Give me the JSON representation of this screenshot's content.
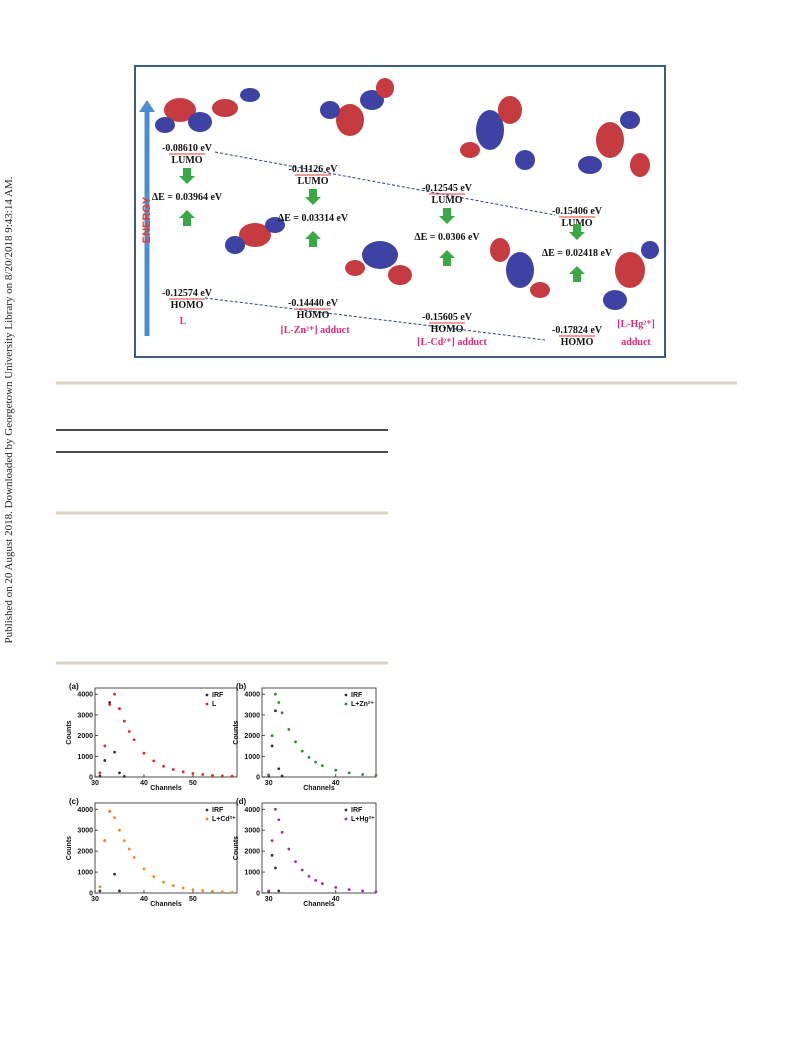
{
  "side_note": "Published on 20 August 2018. Downloaded by Georgetown University Library on 8/20/2018 9:43:14 AM.",
  "figure": {
    "axis_label": "ENERGY",
    "species": [
      {
        "lumo": "-0.08610 eV",
        "lumo_label": "LUMO",
        "gap": "ΔE = 0.03964 eV",
        "homo": "-0.12574 eV",
        "homo_label": "HOMO",
        "name": [
          "L"
        ]
      },
      {
        "lumo": "-0.11126 eV",
        "lumo_label": "LUMO",
        "gap": "ΔE = 0.03314 eV",
        "homo": "-0.14440 eV",
        "homo_label": "HOMO",
        "name": [
          "[L-Zn²⁺] adduct"
        ]
      },
      {
        "lumo": "-0.12545 eV",
        "lumo_label": "LUMO",
        "gap": "ΔE = 0.0306 eV",
        "homo": "-0.15605 eV",
        "homo_label": "HOMO",
        "name": [
          "[L-Cd²⁺] adduct"
        ]
      },
      {
        "lumo": "-0.15406 eV",
        "lumo_label": "LUMO",
        "gap": "ΔE = 0.02418 eV",
        "homo": "-0.17824 eV",
        "homo_label": "HOMO",
        "name": [
          "[L-Hg²⁺]",
          "adduct"
        ]
      }
    ]
  },
  "chart_data": [
    {
      "type": "scatter",
      "panel": "(a)",
      "xlabel": "Channels",
      "ylabel": "Counts",
      "xlim": [
        30,
        59
      ],
      "ylim": [
        0,
        4300
      ],
      "xticks": [
        30,
        40,
        50
      ],
      "yticks": [
        0,
        1000,
        2000,
        3000,
        4000
      ],
      "series": [
        {
          "name": "IRF",
          "color": "#333333",
          "x": [
            31,
            32,
            33,
            34,
            35,
            36
          ],
          "values": [
            50,
            800,
            3600,
            1200,
            200,
            30
          ]
        },
        {
          "name": "L",
          "color": "#d42a2a",
          "x": [
            31,
            32,
            33,
            34,
            35,
            36,
            37,
            38,
            40,
            42,
            44,
            46,
            48,
            50,
            52,
            54,
            56,
            58
          ],
          "values": [
            200,
            1500,
            3500,
            4000,
            3300,
            2700,
            2200,
            1800,
            1150,
            780,
            520,
            360,
            250,
            170,
            120,
            80,
            55,
            40
          ]
        }
      ]
    },
    {
      "type": "scatter",
      "panel": "(b)",
      "xlabel": "Channels",
      "ylabel": "Counts",
      "xlim": [
        29,
        46
      ],
      "ylim": [
        0,
        4300
      ],
      "xticks": [
        30,
        40
      ],
      "yticks": [
        0,
        1000,
        2000,
        3000,
        4000
      ],
      "series": [
        {
          "name": "IRF",
          "color": "#333333",
          "x": [
            30,
            30.5,
            31,
            31.5,
            32
          ],
          "values": [
            30,
            1500,
            3200,
            400,
            50
          ]
        },
        {
          "name": "L+Zn²⁺",
          "color": "#2f8a2f",
          "x": [
            30,
            30.5,
            31,
            31.5,
            32,
            33,
            34,
            35,
            36,
            37,
            38,
            40,
            42,
            44,
            46
          ],
          "values": [
            100,
            2000,
            4000,
            3600,
            3100,
            2300,
            1700,
            1250,
            950,
            720,
            550,
            330,
            200,
            120,
            80
          ]
        }
      ]
    },
    {
      "type": "scatter",
      "panel": "(c)",
      "xlabel": "Channels",
      "ylabel": "Counts",
      "xlim": [
        30,
        59
      ],
      "ylim": [
        0,
        4300
      ],
      "xticks": [
        30,
        40,
        50
      ],
      "yticks": [
        0,
        1000,
        2000,
        3000,
        4000
      ],
      "series": [
        {
          "name": "IRF",
          "color": "#333333",
          "x": [
            31,
            32,
            33,
            34,
            35
          ],
          "values": [
            100,
            2500,
            3900,
            900,
            100
          ]
        },
        {
          "name": "L+Cd²⁺",
          "color": "#ee8a1e",
          "x": [
            31,
            32,
            33,
            34,
            35,
            36,
            37,
            38,
            40,
            42,
            44,
            46,
            48,
            50,
            52,
            54,
            56,
            58
          ],
          "values": [
            300,
            2500,
            3900,
            3600,
            3000,
            2500,
            2100,
            1700,
            1150,
            780,
            520,
            350,
            240,
            160,
            110,
            75,
            50,
            35
          ]
        }
      ]
    },
    {
      "type": "scatter",
      "panel": "(d)",
      "xlabel": "Channels",
      "ylabel": "Counts",
      "xlim": [
        29,
        46
      ],
      "ylim": [
        0,
        4300
      ],
      "xticks": [
        30,
        40
      ],
      "yticks": [
        0,
        1000,
        2000,
        3000,
        4000
      ],
      "series": [
        {
          "name": "IRF",
          "color": "#333333",
          "x": [
            30,
            30.5,
            31,
            31.5
          ],
          "values": [
            50,
            1800,
            1200,
            100
          ]
        },
        {
          "name": "L+Hg²⁺",
          "color": "#9b2fa0",
          "x": [
            30,
            30.5,
            31,
            31.5,
            32,
            33,
            34,
            35,
            36,
            37,
            38,
            40,
            42,
            44,
            46
          ],
          "values": [
            100,
            2500,
            4000,
            3500,
            2900,
            2100,
            1500,
            1100,
            800,
            600,
            450,
            270,
            160,
            100,
            65
          ]
        }
      ]
    }
  ]
}
